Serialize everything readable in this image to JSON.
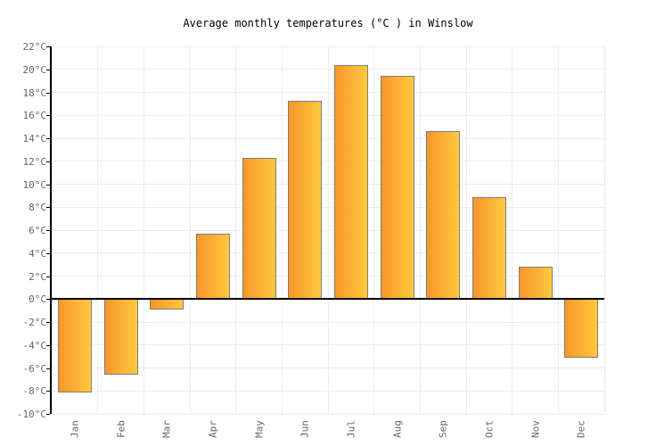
{
  "chart_data": {
    "type": "bar",
    "title": "Average monthly temperatures (°C ) in Winslow",
    "categories": [
      "Jan",
      "Feb",
      "Mar",
      "Apr",
      "May",
      "Jun",
      "Jul",
      "Aug",
      "Sep",
      "Oct",
      "Nov",
      "Dec"
    ],
    "values": [
      -8.1,
      -6.6,
      -0.9,
      5.7,
      12.3,
      17.3,
      20.4,
      19.4,
      14.6,
      8.9,
      2.8,
      -5.1
    ],
    "xlabel": "",
    "ylabel": "",
    "unit": "°C",
    "ylim": [
      -10,
      22
    ],
    "ytick_step": 2,
    "grid": true,
    "legend_position": "none",
    "colors": {
      "bar_gradient_left": "#f8962b",
      "bar_gradient_right": "#ffc93e",
      "bar_border": "#7d7d7d",
      "gridline": "#ececec",
      "axis": "#000000",
      "zero_line": "#000000",
      "tick_label": "#666666",
      "title": "#000000",
      "background": "#ffffff"
    }
  }
}
